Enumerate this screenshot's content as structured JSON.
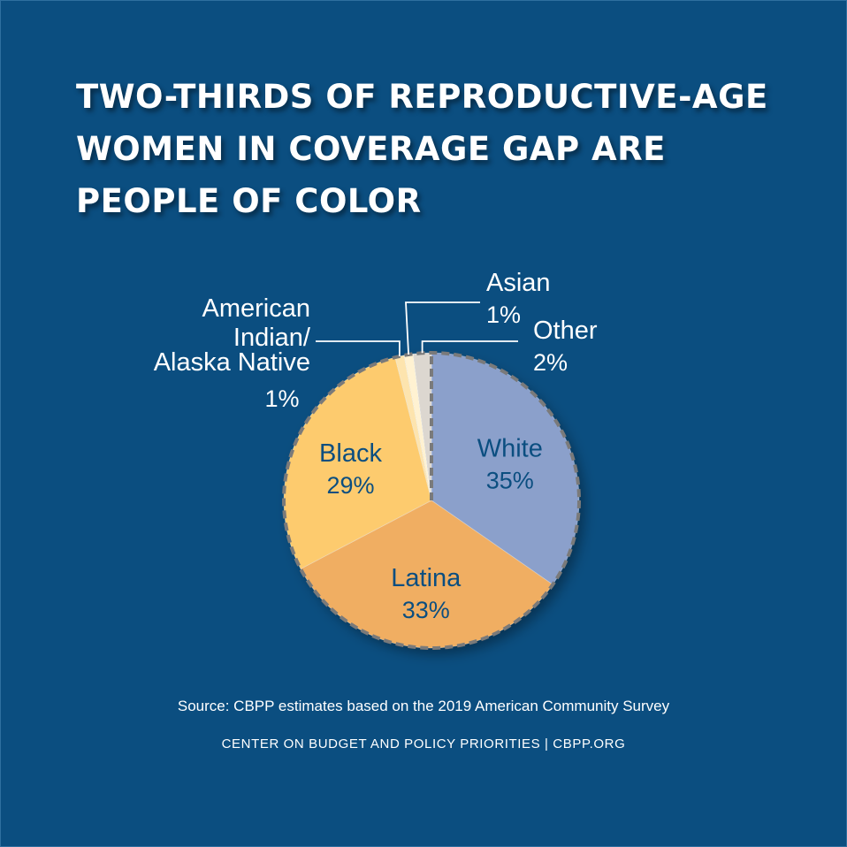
{
  "title_lines": [
    "TWO-THIRDS OF REPRODUCTIVE-AGE",
    "WOMEN IN COVERAGE GAP ARE",
    "PEOPLE OF COLOR"
  ],
  "source": "Source: CBPP estimates based on the 2019 American Community Survey",
  "organization": "CENTER ON BUDGET AND POLICY PRIORITIES | CBPP.ORG",
  "colors": {
    "background": "#0b4e80",
    "white_slice": "#8ba0cb",
    "latina_slice": "#f0ae62",
    "black_slice": "#fdcb6e",
    "aian_slice": "#fde4ae",
    "asian_slice": "#fff2d2",
    "other_slice": "#dcd7d0",
    "inner_label": "#0b4e80",
    "outer_label": "#ffffff"
  },
  "chart_data": {
    "type": "pie",
    "title": "Two-thirds of reproductive-age women in coverage gap are people of color",
    "unit": "%",
    "slices": [
      {
        "name": "White",
        "value": 35,
        "label": "35%"
      },
      {
        "name": "Latina",
        "value": 33,
        "label": "33%"
      },
      {
        "name": "Black",
        "value": 29,
        "label": "29%"
      },
      {
        "name": "American Indian/ Alaska Native",
        "label_lines": [
          "American",
          "Indian/",
          "Alaska Native"
        ],
        "value": 1,
        "label": "1%"
      },
      {
        "name": "Asian",
        "value": 1,
        "label": "1%"
      },
      {
        "name": "Other",
        "value": 2,
        "label": "2%"
      }
    ]
  }
}
